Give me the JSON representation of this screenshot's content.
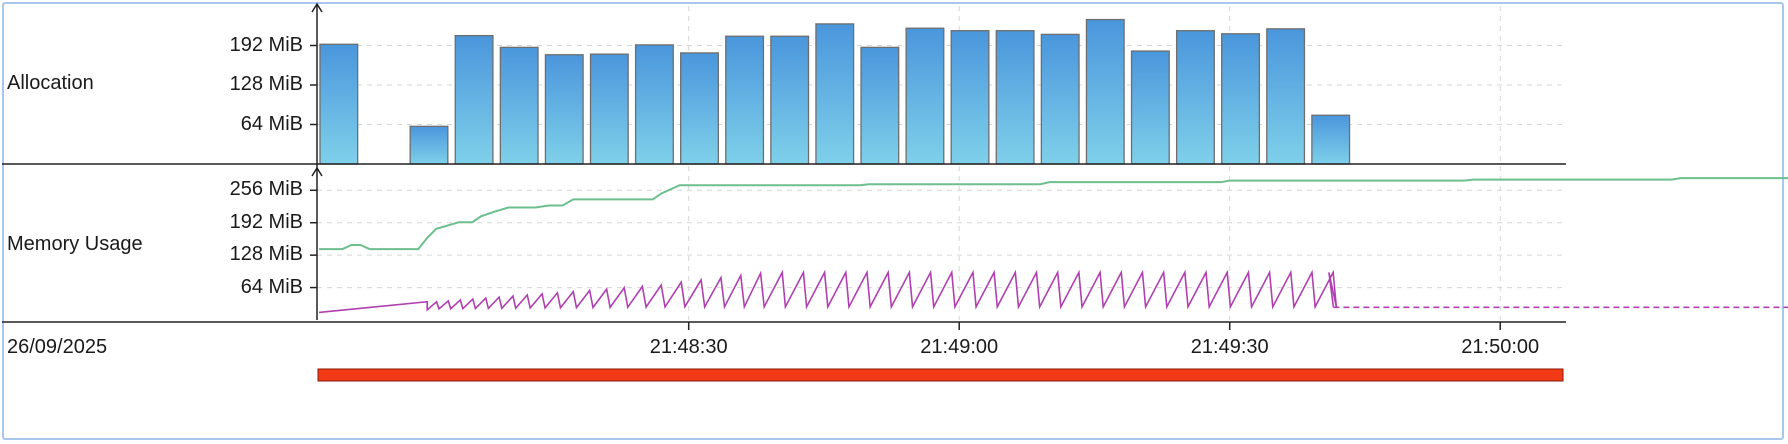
{
  "rows": {
    "allocation_label": "Allocation",
    "memory_label": "Memory Usage",
    "date": "26/09/2025"
  },
  "colors": {
    "bar_top": "#4a96dc",
    "bar_bottom": "#7fd0ea",
    "bar_stroke": "#6e6e6e",
    "memory_green": "#6dbf8e",
    "memory_magenta": "#b040b0",
    "timeline_red": "#f23a16",
    "grid": "#d6d6d6"
  },
  "chart_data": [
    {
      "type": "bar",
      "name": "Allocation",
      "ylabel_unit": "MiB",
      "yticks": [
        "64 MiB",
        "128 MiB",
        "192 MiB"
      ],
      "ytick_values": [
        64,
        128,
        192
      ],
      "ylim": [
        0,
        256
      ],
      "x_start": "21:47:49",
      "bar_width_seconds": 4.4,
      "bin_seconds": 5,
      "values": [
        194,
        0,
        61,
        208,
        189,
        177,
        178,
        193,
        180,
        207,
        207,
        227,
        189,
        220,
        216,
        216,
        210,
        234,
        183,
        216,
        211,
        219,
        79
      ]
    },
    {
      "type": "line",
      "name": "Memory Usage",
      "ylabel_unit": "MiB",
      "yticks": [
        "64 MiB",
        "128 MiB",
        "192 MiB",
        "256 MiB"
      ],
      "ytick_values": [
        64,
        128,
        192,
        256
      ],
      "ylim": [
        0,
        300
      ],
      "series": [
        {
          "color_key": "memory_green",
          "x": [
            0,
            2.6,
            3.6,
            4.6,
            5.6,
            11,
            12,
            13,
            14,
            15.5,
            17,
            18,
            19.5,
            21,
            24,
            25.5,
            27,
            28.2,
            37,
            38,
            40,
            60,
            61,
            80,
            81,
            100,
            101,
            127,
            128,
            150,
            151,
            188
          ],
          "y": [
            140,
            140,
            148,
            148,
            140,
            140,
            162,
            180,
            185,
            193,
            193,
            205,
            214,
            222,
            222,
            226,
            226,
            238,
            238,
            250,
            266,
            266,
            268,
            268,
            272,
            272,
            275,
            275,
            277,
            277,
            280,
            280
          ]
        },
        {
          "color_key": "memory_magenta",
          "style": "sawtooth",
          "x_start": 0,
          "x_end": 112.5,
          "low": 15,
          "peaks": [
            {
              "x": 12,
              "y": 36
            },
            {
              "x": 37,
              "y": 72
            },
            {
              "x": 48,
              "y": 94
            },
            {
              "x": 112,
              "y": 94
            }
          ],
          "tail": {
            "x": [
              112.5,
              188
            ],
            "y": [
              25,
              25
            ],
            "dashed": true
          }
        }
      ]
    }
  ],
  "time_axis": {
    "ticks": [
      "21:48:30",
      "21:49:00",
      "21:49:30",
      "21:50:00"
    ],
    "tick_seconds": [
      41,
      71,
      101,
      131
    ],
    "x_min_seconds": 0,
    "x_max_seconds": 188
  }
}
